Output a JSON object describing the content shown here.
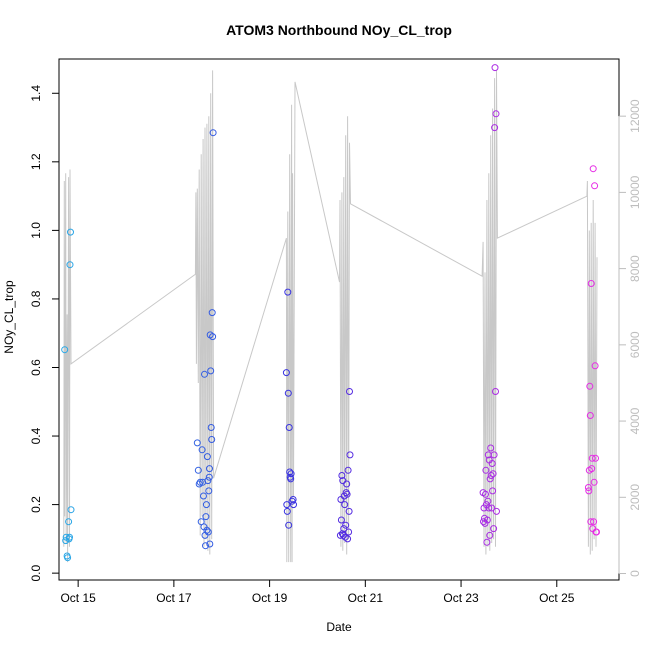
{
  "chart_data": {
    "type": "scatter",
    "title": "ATOM3 Northbound NOy_CL_trop",
    "xlabel": "Date",
    "ylabel": "NOy_CL_trop",
    "y2label": "",
    "xlim": [
      14.6,
      26.3
    ],
    "ylim": [
      -0.02,
      1.5
    ],
    "y2lim": [
      -170,
      13500
    ],
    "x_ticks": [
      15,
      17,
      19,
      21,
      23,
      25
    ],
    "x_tick_labels": [
      "Oct 15",
      "Oct 17",
      "Oct 19",
      "Oct 21",
      "Oct 23",
      "Oct 25"
    ],
    "y_ticks": [
      0.0,
      0.2,
      0.4,
      0.6,
      0.8,
      1.0,
      1.2,
      1.4
    ],
    "y_tick_labels": [
      "0.0",
      "0.2",
      "0.4",
      "0.6",
      "0.8",
      "1.0",
      "1.2",
      "1.4"
    ],
    "y2_ticks": [
      0,
      2000,
      4000,
      6000,
      8000,
      10000,
      12000
    ],
    "y2_tick_labels": [
      "0",
      "2000",
      "4000",
      "6000",
      "8000",
      "10000",
      "12000"
    ],
    "grid": false,
    "legend": "none",
    "colors": {
      "altitude_line": "#c8c8c8",
      "color_start": "#29a8e6",
      "color_mid": "#3a2be0",
      "color_end": "#e92ce6",
      "right_axis": "#bdbdbd"
    },
    "points": [
      {
        "x": 14.72,
        "y": 0.652
      },
      {
        "x": 14.74,
        "y": 0.095
      },
      {
        "x": 14.75,
        "y": 0.105
      },
      {
        "x": 14.77,
        "y": 0.05
      },
      {
        "x": 14.78,
        "y": 0.045
      },
      {
        "x": 14.8,
        "y": 0.15
      },
      {
        "x": 14.81,
        "y": 0.1
      },
      {
        "x": 14.82,
        "y": 0.105
      },
      {
        "x": 14.83,
        "y": 0.9
      },
      {
        "x": 14.84,
        "y": 0.995
      },
      {
        "x": 14.85,
        "y": 0.185
      },
      {
        "x": 17.49,
        "y": 0.38
      },
      {
        "x": 17.51,
        "y": 0.3
      },
      {
        "x": 17.53,
        "y": 0.26
      },
      {
        "x": 17.55,
        "y": 0.265
      },
      {
        "x": 17.57,
        "y": 0.15
      },
      {
        "x": 17.59,
        "y": 0.36
      },
      {
        "x": 17.6,
        "y": 0.265
      },
      {
        "x": 17.62,
        "y": 0.225
      },
      {
        "x": 17.63,
        "y": 0.135
      },
      {
        "x": 17.64,
        "y": 0.58
      },
      {
        "x": 17.65,
        "y": 0.11
      },
      {
        "x": 17.66,
        "y": 0.08
      },
      {
        "x": 17.67,
        "y": 0.165
      },
      {
        "x": 17.68,
        "y": 0.2
      },
      {
        "x": 17.69,
        "y": 0.125
      },
      {
        "x": 17.7,
        "y": 0.34
      },
      {
        "x": 17.71,
        "y": 0.27
      },
      {
        "x": 17.72,
        "y": 0.12
      },
      {
        "x": 17.73,
        "y": 0.24
      },
      {
        "x": 17.74,
        "y": 0.28
      },
      {
        "x": 17.745,
        "y": 0.305
      },
      {
        "x": 17.75,
        "y": 0.085
      },
      {
        "x": 17.76,
        "y": 0.695
      },
      {
        "x": 17.77,
        "y": 0.59
      },
      {
        "x": 17.78,
        "y": 0.425
      },
      {
        "x": 17.79,
        "y": 0.39
      },
      {
        "x": 17.8,
        "y": 0.76
      },
      {
        "x": 17.81,
        "y": 0.69
      },
      {
        "x": 17.82,
        "y": 1.285
      },
      {
        "x": 19.35,
        "y": 0.585
      },
      {
        "x": 19.36,
        "y": 0.2
      },
      {
        "x": 19.37,
        "y": 0.18
      },
      {
        "x": 19.38,
        "y": 0.82
      },
      {
        "x": 19.39,
        "y": 0.525
      },
      {
        "x": 19.4,
        "y": 0.14
      },
      {
        "x": 19.41,
        "y": 0.425
      },
      {
        "x": 19.42,
        "y": 0.295
      },
      {
        "x": 19.43,
        "y": 0.28
      },
      {
        "x": 19.44,
        "y": 0.275
      },
      {
        "x": 19.45,
        "y": 0.29
      },
      {
        "x": 19.47,
        "y": 0.21
      },
      {
        "x": 19.49,
        "y": 0.215
      },
      {
        "x": 19.5,
        "y": 0.2
      },
      {
        "x": 20.48,
        "y": 0.11
      },
      {
        "x": 20.49,
        "y": 0.215
      },
      {
        "x": 20.5,
        "y": 0.155
      },
      {
        "x": 20.51,
        "y": 0.285
      },
      {
        "x": 20.52,
        "y": 0.115
      },
      {
        "x": 20.53,
        "y": 0.27
      },
      {
        "x": 20.54,
        "y": 0.11
      },
      {
        "x": 20.55,
        "y": 0.13
      },
      {
        "x": 20.56,
        "y": 0.225
      },
      {
        "x": 20.57,
        "y": 0.2
      },
      {
        "x": 20.58,
        "y": 0.105
      },
      {
        "x": 20.59,
        "y": 0.14
      },
      {
        "x": 20.6,
        "y": 0.235
      },
      {
        "x": 20.61,
        "y": 0.26
      },
      {
        "x": 20.62,
        "y": 0.23
      },
      {
        "x": 20.63,
        "y": 0.1
      },
      {
        "x": 20.64,
        "y": 0.3
      },
      {
        "x": 20.65,
        "y": 0.12
      },
      {
        "x": 20.66,
        "y": 0.18
      },
      {
        "x": 20.67,
        "y": 0.53
      },
      {
        "x": 20.68,
        "y": 0.345
      },
      {
        "x": 23.46,
        "y": 0.235
      },
      {
        "x": 23.47,
        "y": 0.15
      },
      {
        "x": 23.48,
        "y": 0.19
      },
      {
        "x": 23.49,
        "y": 0.16
      },
      {
        "x": 23.5,
        "y": 0.145
      },
      {
        "x": 23.51,
        "y": 0.23
      },
      {
        "x": 23.52,
        "y": 0.3
      },
      {
        "x": 23.53,
        "y": 0.2
      },
      {
        "x": 23.54,
        "y": 0.09
      },
      {
        "x": 23.55,
        "y": 0.155
      },
      {
        "x": 23.56,
        "y": 0.21
      },
      {
        "x": 23.57,
        "y": 0.345
      },
      {
        "x": 23.58,
        "y": 0.19
      },
      {
        "x": 23.59,
        "y": 0.33
      },
      {
        "x": 23.6,
        "y": 0.11
      },
      {
        "x": 23.61,
        "y": 0.275
      },
      {
        "x": 23.62,
        "y": 0.365
      },
      {
        "x": 23.63,
        "y": 0.285
      },
      {
        "x": 23.64,
        "y": 0.19
      },
      {
        "x": 23.65,
        "y": 0.32
      },
      {
        "x": 23.66,
        "y": 0.24
      },
      {
        "x": 23.67,
        "y": 0.29
      },
      {
        "x": 23.68,
        "y": 0.13
      },
      {
        "x": 23.69,
        "y": 0.345
      },
      {
        "x": 23.7,
        "y": 1.3
      },
      {
        "x": 23.71,
        "y": 1.475
      },
      {
        "x": 23.72,
        "y": 0.53
      },
      {
        "x": 23.73,
        "y": 1.34
      },
      {
        "x": 23.74,
        "y": 0.18
      },
      {
        "x": 25.66,
        "y": 0.25
      },
      {
        "x": 25.67,
        "y": 0.24
      },
      {
        "x": 25.68,
        "y": 0.3
      },
      {
        "x": 25.69,
        "y": 0.545
      },
      {
        "x": 25.7,
        "y": 0.46
      },
      {
        "x": 25.71,
        "y": 0.15
      },
      {
        "x": 25.72,
        "y": 0.845
      },
      {
        "x": 25.73,
        "y": 0.305
      },
      {
        "x": 25.74,
        "y": 0.335
      },
      {
        "x": 25.75,
        "y": 0.13
      },
      {
        "x": 25.76,
        "y": 1.18
      },
      {
        "x": 25.77,
        "y": 0.15
      },
      {
        "x": 25.78,
        "y": 0.265
      },
      {
        "x": 25.79,
        "y": 1.13
      },
      {
        "x": 25.8,
        "y": 0.605
      },
      {
        "x": 25.81,
        "y": 0.335
      },
      {
        "x": 25.82,
        "y": 0.12
      },
      {
        "x": 25.83,
        "y": 0.12
      }
    ],
    "altitude_series": [
      {
        "x": 14.7,
        "y2": 700
      },
      {
        "x": 14.71,
        "y2": 10300
      },
      {
        "x": 14.72,
        "y2": 1500
      },
      {
        "x": 14.74,
        "y2": 10500
      },
      {
        "x": 14.75,
        "y2": 800
      },
      {
        "x": 14.77,
        "y2": 6800
      },
      {
        "x": 14.78,
        "y2": 300
      },
      {
        "x": 14.8,
        "y2": 10400
      },
      {
        "x": 14.82,
        "y2": 700
      },
      {
        "x": 14.83,
        "y2": 10600
      },
      {
        "x": 14.85,
        "y2": 5500
      },
      {
        "x": 17.45,
        "y2": 7850
      },
      {
        "x": 17.46,
        "y2": 10000
      },
      {
        "x": 17.47,
        "y2": 5500
      },
      {
        "x": 17.49,
        "y2": 10100
      },
      {
        "x": 17.51,
        "y2": 5000
      },
      {
        "x": 17.53,
        "y2": 10600
      },
      {
        "x": 17.55,
        "y2": 1000
      },
      {
        "x": 17.57,
        "y2": 11000
      },
      {
        "x": 17.59,
        "y2": 1500
      },
      {
        "x": 17.61,
        "y2": 11400
      },
      {
        "x": 17.63,
        "y2": 700
      },
      {
        "x": 17.65,
        "y2": 11700
      },
      {
        "x": 17.67,
        "y2": 900
      },
      {
        "x": 17.69,
        "y2": 11800
      },
      {
        "x": 17.71,
        "y2": 600
      },
      {
        "x": 17.73,
        "y2": 12000
      },
      {
        "x": 17.75,
        "y2": 500
      },
      {
        "x": 17.77,
        "y2": 12600
      },
      {
        "x": 17.79,
        "y2": 900
      },
      {
        "x": 17.81,
        "y2": 13200
      },
      {
        "x": 17.83,
        "y2": 2500
      },
      {
        "x": 19.35,
        "y2": 8800
      },
      {
        "x": 19.36,
        "y2": 300
      },
      {
        "x": 19.38,
        "y2": 9500
      },
      {
        "x": 19.4,
        "y2": 300
      },
      {
        "x": 19.42,
        "y2": 11000
      },
      {
        "x": 19.44,
        "y2": 300
      },
      {
        "x": 19.46,
        "y2": 12300
      },
      {
        "x": 19.47,
        "y2": 300
      },
      {
        "x": 19.48,
        "y2": 10500
      },
      {
        "x": 19.5,
        "y2": 2000
      },
      {
        "x": 19.53,
        "y2": 12900
      },
      {
        "x": 20.46,
        "y2": 7650
      },
      {
        "x": 20.47,
        "y2": 9800
      },
      {
        "x": 20.49,
        "y2": 700
      },
      {
        "x": 20.51,
        "y2": 10000
      },
      {
        "x": 20.53,
        "y2": 600
      },
      {
        "x": 20.55,
        "y2": 10400
      },
      {
        "x": 20.57,
        "y2": 800
      },
      {
        "x": 20.59,
        "y2": 11500
      },
      {
        "x": 20.61,
        "y2": 500
      },
      {
        "x": 20.63,
        "y2": 12000
      },
      {
        "x": 20.65,
        "y2": 900
      },
      {
        "x": 20.67,
        "y2": 11300
      },
      {
        "x": 20.69,
        "y2": 9700
      },
      {
        "x": 23.44,
        "y2": 7800
      },
      {
        "x": 23.46,
        "y2": 8700
      },
      {
        "x": 23.48,
        "y2": 700
      },
      {
        "x": 23.5,
        "y2": 7900
      },
      {
        "x": 23.52,
        "y2": 500
      },
      {
        "x": 23.54,
        "y2": 9800
      },
      {
        "x": 23.56,
        "y2": 700
      },
      {
        "x": 23.58,
        "y2": 10500
      },
      {
        "x": 23.6,
        "y2": 600
      },
      {
        "x": 23.62,
        "y2": 11500
      },
      {
        "x": 23.64,
        "y2": 800
      },
      {
        "x": 23.66,
        "y2": 12200
      },
      {
        "x": 23.68,
        "y2": 900
      },
      {
        "x": 23.7,
        "y2": 13000
      },
      {
        "x": 23.72,
        "y2": 700
      },
      {
        "x": 23.74,
        "y2": 13200
      },
      {
        "x": 23.76,
        "y2": 8800
      },
      {
        "x": 25.63,
        "y2": 9900
      },
      {
        "x": 25.64,
        "y2": 10300
      },
      {
        "x": 25.66,
        "y2": 700
      },
      {
        "x": 25.68,
        "y2": 9000
      },
      {
        "x": 25.7,
        "y2": 500
      },
      {
        "x": 25.72,
        "y2": 9200
      },
      {
        "x": 25.74,
        "y2": 600
      },
      {
        "x": 25.76,
        "y2": 9800
      },
      {
        "x": 25.78,
        "y2": 900
      },
      {
        "x": 25.8,
        "y2": 9200
      },
      {
        "x": 25.82,
        "y2": 700
      },
      {
        "x": 25.84,
        "y2": 8300
      }
    ]
  }
}
